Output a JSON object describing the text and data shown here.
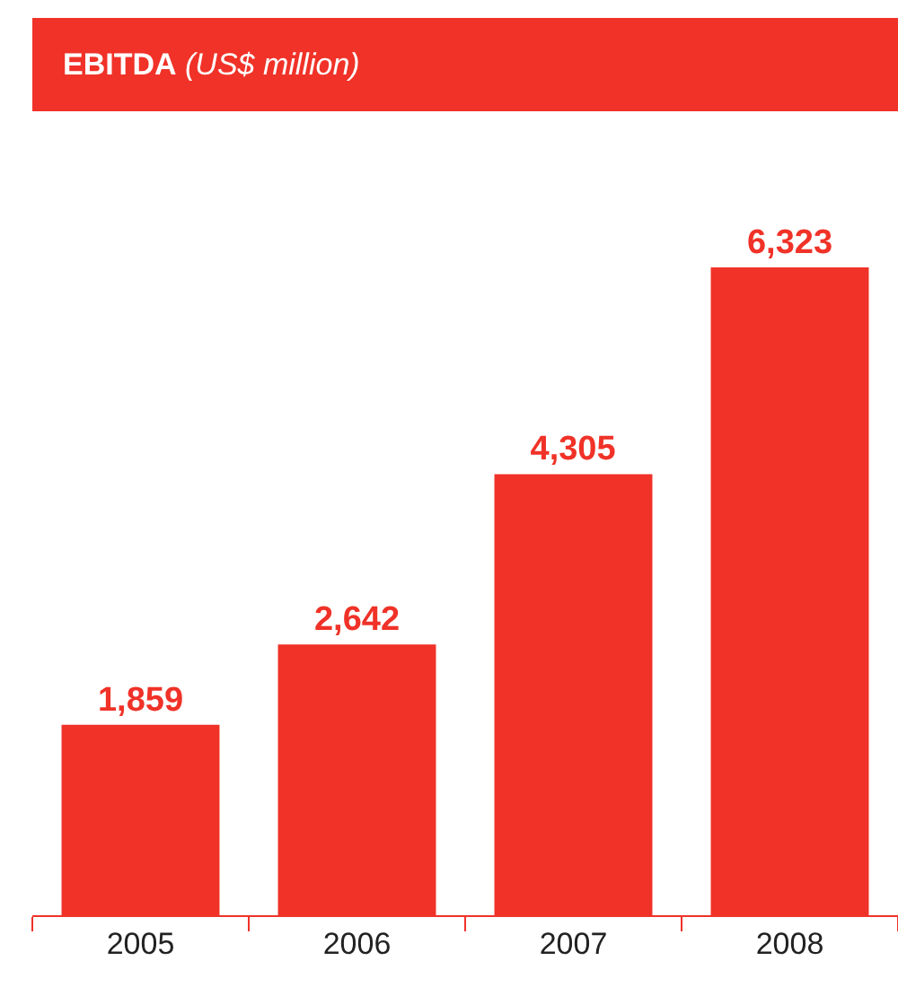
{
  "chart_data": {
    "type": "bar",
    "title": "EBITDA (US$ million)",
    "categories": [
      "2005",
      "2006",
      "2007",
      "2008"
    ],
    "values": [
      1859,
      2642,
      4305,
      6323
    ],
    "value_labels": [
      "1,859",
      "2,642",
      "4,305",
      "6,323"
    ],
    "color": "#f03228"
  }
}
